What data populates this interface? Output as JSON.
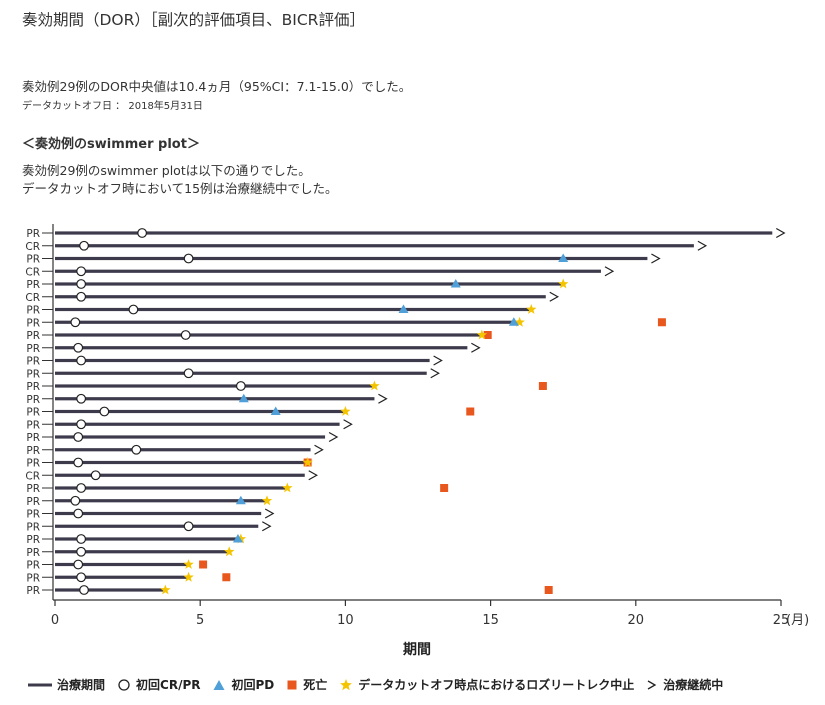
{
  "header": {
    "title": "奏効期間（DOR）［副次的評価項目、BICR評価］",
    "summary": "奏効例29例のDOR中央値は10.4ヵ月（95%CI：7.1-15.0）でした。",
    "cutoff": "データカットオフ日 ： 2018年5月31日",
    "section_title": "＜奏効例のswimmer plot＞",
    "body_line1": "奏効例29例のswimmer plotは以下の通りでした。",
    "body_line2": "データカットオフ時において15例は治療継続中でした。"
  },
  "legend": {
    "treatment": "治療期間",
    "first_response": "初回CR/PR",
    "first_pd": "初回PD",
    "death": "死亡",
    "lost": "データカットオフ時点におけるロズリートレク中止",
    "ongoing": "治療継続中"
  },
  "colors": {
    "bar": "#3d3a4b",
    "pd": "#4f9fd8",
    "death": "#e8571e",
    "star": "#f5c400",
    "axis": "#333333"
  },
  "chart_data": {
    "type": "swimmer",
    "xlabel": "期間",
    "x_unit": "(月)",
    "xlim": [
      0,
      25
    ],
    "xticks": [
      0,
      5,
      10,
      15,
      20,
      25
    ],
    "rows": [
      {
        "label": "PR",
        "end": 24.7,
        "response": 3.0,
        "pd": null,
        "death": null,
        "discontinued": null,
        "ongoing": true
      },
      {
        "label": "CR",
        "end": 22.0,
        "response": 1.0,
        "pd": null,
        "death": null,
        "discontinued": null,
        "ongoing": true
      },
      {
        "label": "PR",
        "end": 20.4,
        "response": 4.6,
        "pd": 17.5,
        "death": null,
        "discontinued": null,
        "ongoing": true
      },
      {
        "label": "CR",
        "end": 18.8,
        "response": 0.9,
        "pd": null,
        "death": null,
        "discontinued": null,
        "ongoing": true
      },
      {
        "label": "PR",
        "end": 17.5,
        "response": 0.9,
        "pd": 13.8,
        "death": null,
        "discontinued": 17.5,
        "ongoing": false
      },
      {
        "label": "CR",
        "end": 16.9,
        "response": 0.9,
        "pd": null,
        "death": null,
        "discontinued": null,
        "ongoing": true
      },
      {
        "label": "PR",
        "end": 16.4,
        "response": 2.7,
        "pd": 12.0,
        "death": null,
        "discontinued": 16.4,
        "ongoing": false
      },
      {
        "label": "PR",
        "end": 16.0,
        "response": 0.7,
        "pd": 15.8,
        "death": 20.9,
        "discontinued": 16.0,
        "ongoing": false
      },
      {
        "label": "PR",
        "end": 14.9,
        "response": 4.5,
        "pd": null,
        "death": 14.9,
        "discontinued": 14.7,
        "ongoing": false
      },
      {
        "label": "PR",
        "end": 14.2,
        "response": 0.8,
        "pd": null,
        "death": null,
        "discontinued": null,
        "ongoing": true
      },
      {
        "label": "PR",
        "end": 12.9,
        "response": 0.9,
        "pd": null,
        "death": null,
        "discontinued": null,
        "ongoing": true
      },
      {
        "label": "PR",
        "end": 12.8,
        "response": 4.6,
        "pd": null,
        "death": null,
        "discontinued": null,
        "ongoing": true
      },
      {
        "label": "PR",
        "end": 11.0,
        "response": 6.4,
        "pd": null,
        "death": 16.8,
        "discontinued": 11.0,
        "ongoing": false
      },
      {
        "label": "PR",
        "end": 11.0,
        "response": 0.9,
        "pd": 6.5,
        "death": null,
        "discontinued": null,
        "ongoing": true
      },
      {
        "label": "PR",
        "end": 10.0,
        "response": 1.7,
        "pd": 7.6,
        "death": 14.3,
        "discontinued": 10.0,
        "ongoing": false
      },
      {
        "label": "PR",
        "end": 9.8,
        "response": 0.9,
        "pd": null,
        "death": null,
        "discontinued": null,
        "ongoing": true
      },
      {
        "label": "PR",
        "end": 9.3,
        "response": 0.8,
        "pd": null,
        "death": null,
        "discontinued": null,
        "ongoing": true
      },
      {
        "label": "PR",
        "end": 8.8,
        "response": 2.8,
        "pd": null,
        "death": null,
        "discontinued": null,
        "ongoing": true
      },
      {
        "label": "PR",
        "end": 8.7,
        "response": 0.8,
        "pd": null,
        "death": 8.7,
        "discontinued": 8.7,
        "ongoing": false
      },
      {
        "label": "CR",
        "end": 8.6,
        "response": 1.4,
        "pd": null,
        "death": null,
        "discontinued": null,
        "ongoing": true
      },
      {
        "label": "PR",
        "end": 8.0,
        "response": 0.9,
        "pd": null,
        "death": 13.4,
        "discontinued": 8.0,
        "ongoing": false
      },
      {
        "label": "PR",
        "end": 7.3,
        "response": 0.7,
        "pd": 6.4,
        "death": null,
        "discontinued": 7.3,
        "ongoing": false
      },
      {
        "label": "PR",
        "end": 7.1,
        "response": 0.8,
        "pd": null,
        "death": null,
        "discontinued": null,
        "ongoing": true
      },
      {
        "label": "PR",
        "end": 7.0,
        "response": 4.6,
        "pd": null,
        "death": null,
        "discontinued": null,
        "ongoing": true
      },
      {
        "label": "PR",
        "end": 6.4,
        "response": 0.9,
        "pd": 6.3,
        "death": null,
        "discontinued": 6.4,
        "ongoing": false
      },
      {
        "label": "PR",
        "end": 6.0,
        "response": 0.9,
        "pd": null,
        "death": null,
        "discontinued": 6.0,
        "ongoing": false
      },
      {
        "label": "PR",
        "end": 4.6,
        "response": 0.8,
        "pd": null,
        "death": 5.1,
        "discontinued": 4.6,
        "ongoing": false
      },
      {
        "label": "PR",
        "end": 4.6,
        "response": 0.9,
        "pd": null,
        "death": 5.9,
        "discontinued": 4.6,
        "ongoing": false
      },
      {
        "label": "PR",
        "end": 3.8,
        "response": 1.0,
        "pd": null,
        "death": 17.0,
        "discontinued": 3.8,
        "ongoing": false
      }
    ]
  }
}
